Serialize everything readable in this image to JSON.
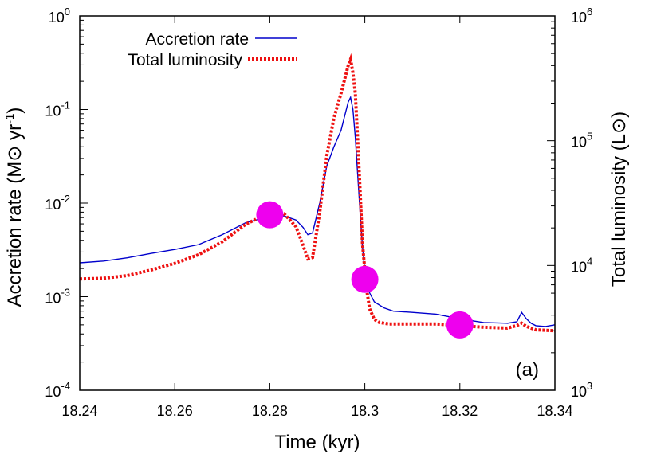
{
  "chart_data": {
    "type": "line",
    "title": "",
    "xlabel": "Time (kyr)",
    "ylabel": "Accretion rate (M⊙ yr",
    "ylabel_sup": "-1",
    "ylabel_close": ")",
    "y2label": "Total luminosity (L⊙)",
    "annotation": "(a)",
    "xlim": [
      18.24,
      18.34
    ],
    "ylim": [
      0.0001,
      1
    ],
    "y_scale": "log",
    "y2lim": [
      1000,
      1000000
    ],
    "y2_scale": "log",
    "grid": false,
    "legend_position": "top-left",
    "x_ticks": [
      "18.24",
      "18.26",
      "18.28",
      "18.3",
      "18.32",
      "18.34"
    ],
    "y_ticks": [
      {
        "value": 0.0001,
        "base": "10",
        "exp": "-4"
      },
      {
        "value": 0.001,
        "base": "10",
        "exp": "-3"
      },
      {
        "value": 0.01,
        "base": "10",
        "exp": "-2"
      },
      {
        "value": 0.1,
        "base": "10",
        "exp": "-1"
      },
      {
        "value": 1,
        "base": "10",
        "exp": "0"
      }
    ],
    "y2_ticks": [
      {
        "value": 1000,
        "base": "10",
        "exp": "3"
      },
      {
        "value": 10000,
        "base": "10",
        "exp": "4"
      },
      {
        "value": 100000,
        "base": "10",
        "exp": "5"
      },
      {
        "value": 1000000,
        "base": "10",
        "exp": "6"
      }
    ],
    "series": [
      {
        "name": "Accretion rate",
        "axis": "left",
        "color": "#0000cc",
        "style": "solid",
        "x": [
          18.24,
          18.245,
          18.25,
          18.255,
          18.26,
          18.265,
          18.27,
          18.275,
          18.28,
          18.283,
          18.2855,
          18.287,
          18.288,
          18.289,
          18.2905,
          18.292,
          18.2935,
          18.295,
          18.2965,
          18.297,
          18.2975,
          18.298,
          18.2985,
          18.299,
          18.2995,
          18.3,
          18.301,
          18.302,
          18.304,
          18.306,
          18.31,
          18.315,
          18.32,
          18.325,
          18.33,
          18.332,
          18.333,
          18.334,
          18.335,
          18.336,
          18.338,
          18.34
        ],
        "y": [
          0.0023,
          0.0024,
          0.0026,
          0.0029,
          0.0032,
          0.0036,
          0.0046,
          0.0062,
          0.0072,
          0.0073,
          0.0066,
          0.0055,
          0.0046,
          0.0048,
          0.01,
          0.025,
          0.04,
          0.06,
          0.12,
          0.135,
          0.1,
          0.05,
          0.02,
          0.008,
          0.0035,
          0.00185,
          0.0011,
          0.00088,
          0.00076,
          0.0007,
          0.00068,
          0.00065,
          0.00058,
          0.00053,
          0.00052,
          0.00054,
          0.00068,
          0.00058,
          0.00052,
          0.00049,
          0.00048,
          0.0005
        ]
      },
      {
        "name": "Total luminosity",
        "axis": "right",
        "color": "#ee1111",
        "style": "dotted",
        "x": [
          18.24,
          18.245,
          18.25,
          18.255,
          18.26,
          18.265,
          18.27,
          18.275,
          18.28,
          18.283,
          18.2855,
          18.287,
          18.288,
          18.289,
          18.2905,
          18.292,
          18.2935,
          18.295,
          18.2965,
          18.297,
          18.2975,
          18.298,
          18.2985,
          18.299,
          18.2995,
          18.3,
          18.3005,
          18.301,
          18.302,
          18.303,
          18.305,
          18.31,
          18.315,
          18.32,
          18.325,
          18.33,
          18.332,
          18.333,
          18.334,
          18.336,
          18.34
        ],
        "y": [
          7800,
          7900,
          8300,
          9200,
          10400,
          12200,
          15500,
          21500,
          26500,
          26000,
          20500,
          14500,
          11300,
          11600,
          26500,
          76000,
          152000,
          240000,
          400000,
          450000,
          350000,
          240000,
          100000,
          40000,
          15000,
          9200,
          6000,
          4500,
          3700,
          3500,
          3400,
          3400,
          3400,
          3300,
          3200,
          3150,
          3300,
          3450,
          3250,
          3050,
          3000
        ]
      }
    ],
    "highlight_points": [
      {
        "x": 18.28,
        "y": 0.0075
      },
      {
        "x": 18.3,
        "y": 0.00153
      },
      {
        "x": 18.32,
        "y": 0.0005
      }
    ],
    "highlight_color": "#ee00ee"
  }
}
